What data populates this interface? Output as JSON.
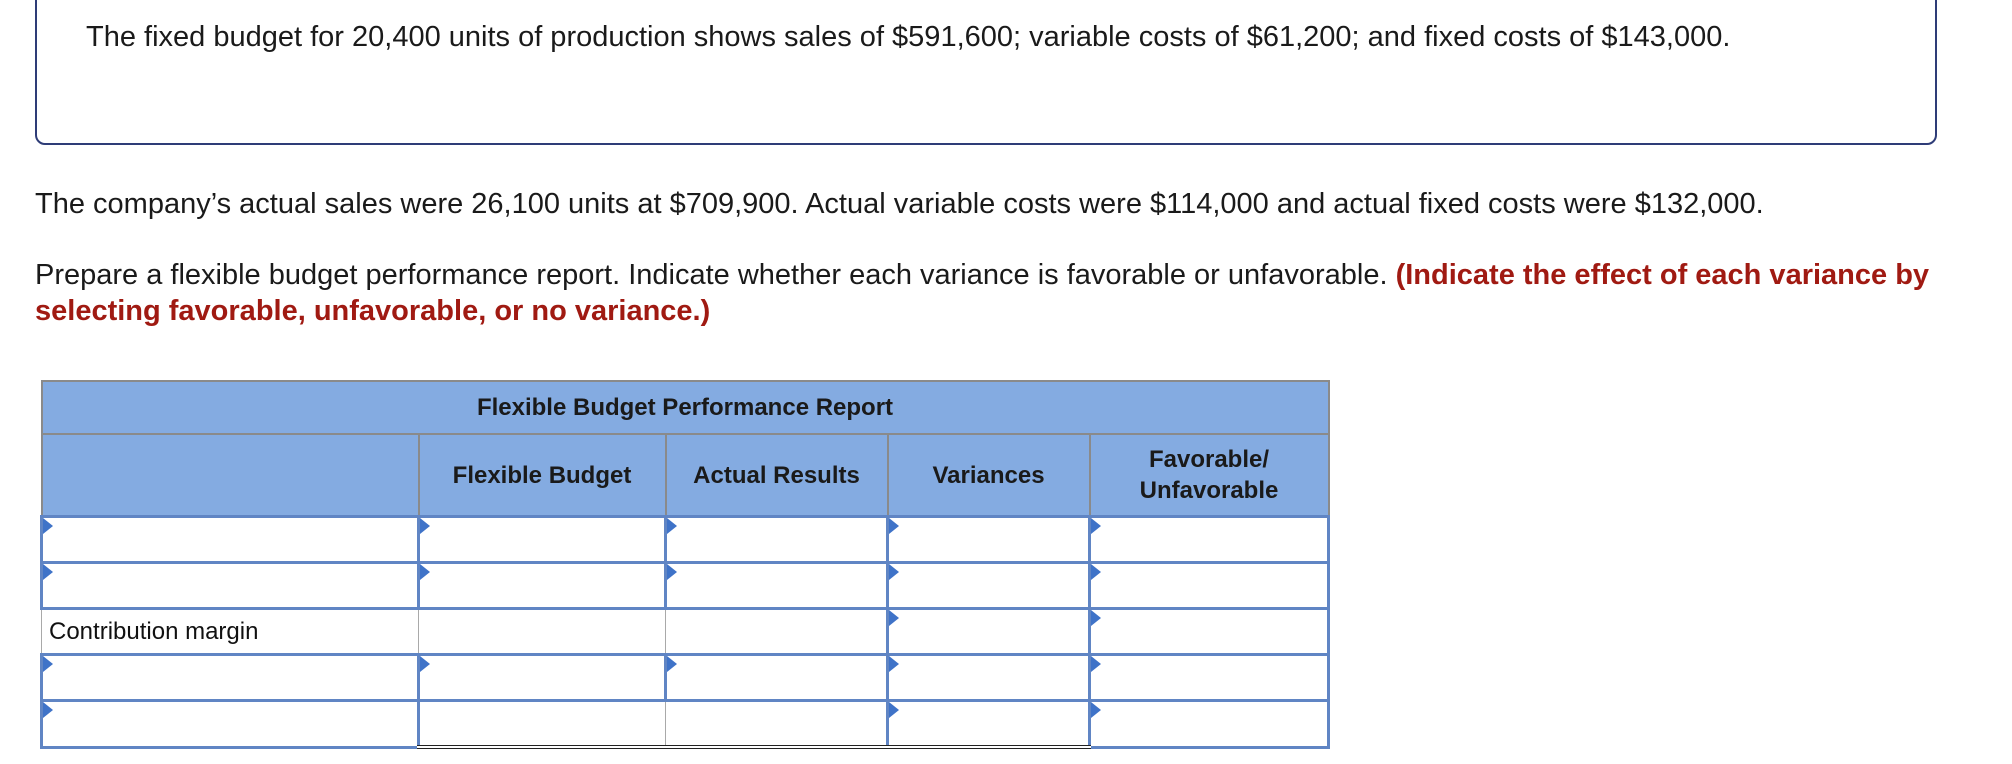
{
  "given": {
    "text": "The fixed budget for 20,400 units of production shows sales of $591,600; variable costs of $61,200; and fixed costs of $143,000."
  },
  "facts": {
    "text": "The company’s actual sales were 26,100 units at $709,900. Actual variable costs were $114,000 and actual fixed costs were $132,000."
  },
  "instruction": {
    "text": "Prepare a flexible budget performance report. Indicate whether each variance is favorable or unfavorable.",
    "emphasis": "(Indicate the effect of each variance by selecting favorable, unfavorable, or no variance.)"
  },
  "report": {
    "title": "Flexible Budget Performance Report",
    "columns": [
      "",
      "Flexible Budget",
      "Actual Results",
      "Variances",
      "Favorable/\nUnfavorable"
    ],
    "rows": [
      {
        "label": "",
        "kind": "input"
      },
      {
        "label": "",
        "kind": "input"
      },
      {
        "label": "Contribution margin",
        "kind": "subtotal"
      },
      {
        "label": "",
        "kind": "input"
      },
      {
        "label": "",
        "kind": "final"
      }
    ]
  },
  "colors": {
    "header_bg": "#84abe1",
    "input_border": "#6085c4",
    "marker": "#3f73c8",
    "emphasis": "#a01a12"
  }
}
